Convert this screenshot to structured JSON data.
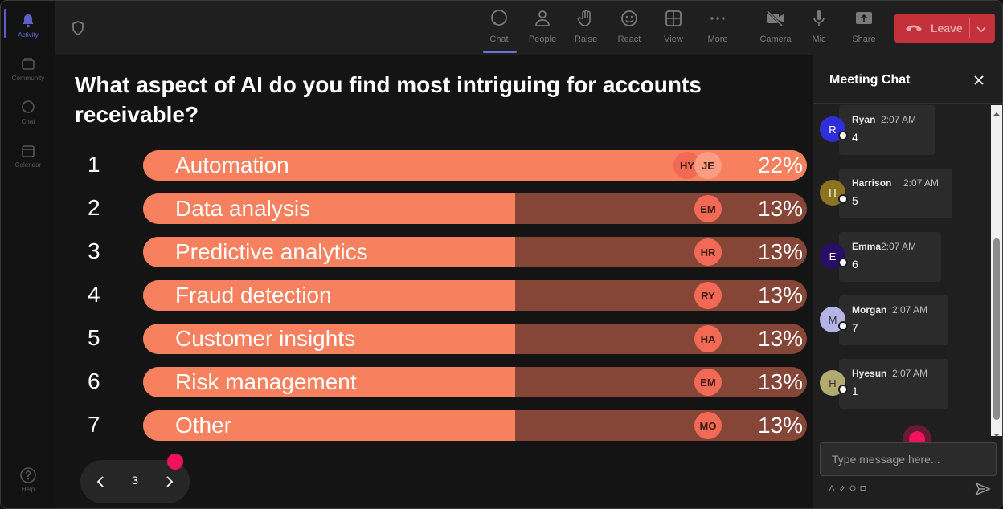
{
  "rail": {
    "items": [
      {
        "label": "Activity",
        "icon": "bell-icon",
        "active": true
      },
      {
        "label": "Community",
        "icon": "community-icon",
        "active": false
      },
      {
        "label": "Chat",
        "icon": "chat-icon",
        "active": false
      },
      {
        "label": "Calendar",
        "icon": "calendar-icon",
        "active": false
      }
    ],
    "help_label": "Help"
  },
  "toolbar": {
    "buttons": [
      {
        "label": "Chat",
        "icon": "chat-icon",
        "active": true
      },
      {
        "label": "People",
        "icon": "people-icon"
      },
      {
        "label": "Raise",
        "icon": "raise-hand-icon"
      },
      {
        "label": "React",
        "icon": "react-icon"
      },
      {
        "label": "View",
        "icon": "view-icon"
      },
      {
        "label": "More",
        "icon": "more-icon"
      },
      {
        "label": "Camera",
        "icon": "camera-off-icon"
      },
      {
        "label": "Mic",
        "icon": "mic-icon"
      },
      {
        "label": "Share",
        "icon": "share-icon"
      }
    ],
    "leave_label": "Leave"
  },
  "poll": {
    "question": "What aspect of AI do you find most intriguing for accounts receivable?",
    "options": [
      {
        "num": "1",
        "label": "Automation",
        "percent": "22%",
        "fill": 1.0,
        "badges": [
          "HY",
          "JE"
        ]
      },
      {
        "num": "2",
        "label": "Data analysis",
        "percent": "13%",
        "fill": 0.56,
        "badges": [
          "EM"
        ]
      },
      {
        "num": "3",
        "label": "Predictive analytics",
        "percent": "13%",
        "fill": 0.56,
        "badges": [
          "HR"
        ]
      },
      {
        "num": "4",
        "label": "Fraud detection",
        "percent": "13%",
        "fill": 0.56,
        "badges": [
          "RY"
        ]
      },
      {
        "num": "5",
        "label": "Customer insights",
        "percent": "13%",
        "fill": 0.56,
        "badges": [
          "HA"
        ]
      },
      {
        "num": "6",
        "label": "Risk management",
        "percent": "13%",
        "fill": 0.56,
        "badges": [
          "EM"
        ]
      },
      {
        "num": "7",
        "label": "Other",
        "percent": "13%",
        "fill": 0.56,
        "badges": [
          "MO"
        ]
      }
    ],
    "page": "3"
  },
  "chat": {
    "title": "Meeting Chat",
    "messages": [
      {
        "initial": "R",
        "name": "Ryan",
        "time": "2:07 AM",
        "body": "4",
        "color": "#2f2fd9",
        "text_color": "#ffffff"
      },
      {
        "initial": "H",
        "name": "Harrison",
        "time": "2:07 AM",
        "body": "5",
        "color": "#8a7420",
        "text_color": "#ffffff"
      },
      {
        "initial": "E",
        "name": "Emma",
        "time": "2:07 AM",
        "body": "6",
        "color": "#2a0d66",
        "text_color": "#ffffff"
      },
      {
        "initial": "M",
        "name": "Morgan",
        "time": "2:07 AM",
        "body": "7",
        "color": "#b3b3e6",
        "text_color": "#333333"
      },
      {
        "initial": "H",
        "name": "Hyesun",
        "time": "2:07 AM",
        "body": "1",
        "color": "#b3aa72",
        "text_color": "#333333"
      }
    ],
    "input_placeholder": "Type message here..."
  },
  "colors": {
    "bar_fill": "#f7815f",
    "bar_track": "#864637",
    "leave": "#c4313b",
    "accent": "#5b5fc7",
    "marker": "#f0125a"
  }
}
